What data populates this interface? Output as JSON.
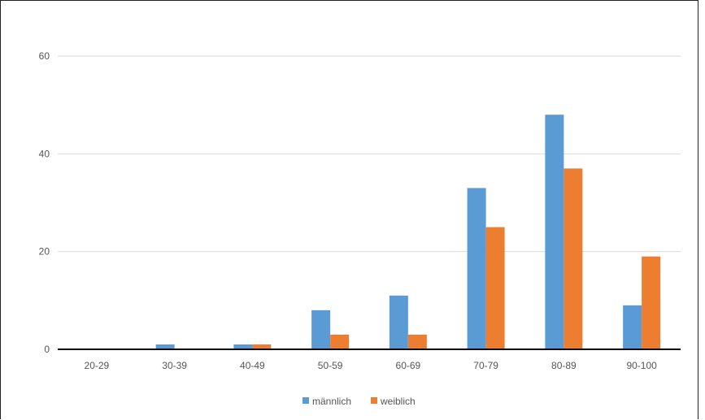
{
  "chart_data": {
    "type": "bar",
    "title": "",
    "xlabel": "",
    "ylabel": "",
    "categories": [
      "20-29",
      "30-39",
      "40-49",
      "50-59",
      "60-69",
      "70-79",
      "80-89",
      "90-100"
    ],
    "series": [
      {
        "name": "männlich",
        "color": "#5b9bd5",
        "values": [
          0,
          1,
          1,
          8,
          11,
          33,
          48,
          9
        ]
      },
      {
        "name": "weiblich",
        "color": "#ed7d31",
        "values": [
          0,
          0,
          1,
          3,
          3,
          25,
          37,
          19
        ]
      }
    ],
    "yticks": [
      0,
      20,
      40,
      60
    ],
    "ylim": [
      0,
      60
    ],
    "grid": true,
    "legend_position": "bottom"
  }
}
